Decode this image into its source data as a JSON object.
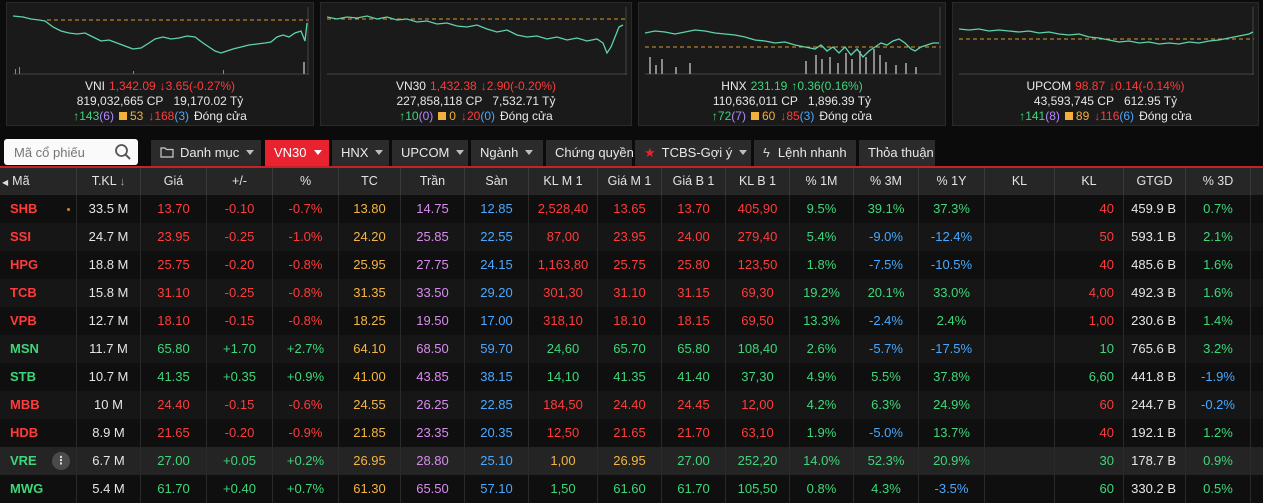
{
  "indices": [
    {
      "name": "VNI",
      "value": "1,342.09",
      "change": "3.65(-0.27%)",
      "dir": "down",
      "volume": "819,032,665 CP",
      "amount": "19,170.02 Tỷ",
      "adv": "143",
      "adv_ceil": "(6)",
      "unch": "53",
      "dec": "168",
      "dec_floor": "(3)",
      "status": "Đóng cửa"
    },
    {
      "name": "VN30",
      "value": "1,432.38",
      "change": "2.90(-0.20%)",
      "dir": "down",
      "volume": "227,858,118 CP",
      "amount": "7,532.71 Tỷ",
      "adv": "10",
      "adv_ceil": "(0)",
      "unch": "0",
      "dec": "20",
      "dec_floor": "(0)",
      "status": "Đóng cửa"
    },
    {
      "name": "HNX",
      "value": "231.19",
      "change": "0.36(0.16%)",
      "dir": "up",
      "volume": "110,636,011 CP",
      "amount": "1,896.39 Tỷ",
      "adv": "72",
      "adv_ceil": "(7)",
      "unch": "60",
      "dec": "85",
      "dec_floor": "(3)",
      "status": "Đóng cửa"
    },
    {
      "name": "UPCOM",
      "value": "98.87",
      "change": "0.14(-0.14%)",
      "dir": "down",
      "volume": "43,593,745 CP",
      "amount": "612.95 Tỷ",
      "adv": "141",
      "adv_ceil": "(8)",
      "unch": "89",
      "dec": "116",
      "dec_floor": "(6)",
      "status": "Đóng cửa"
    }
  ],
  "search": {
    "placeholder": "Mã cổ phiếu"
  },
  "tabs": [
    "Danh mục",
    "VN30",
    "HNX",
    "UPCOM",
    "Ngành",
    "Chứng quyền",
    "TCBS-Gợi ý",
    "Lệnh nhanh",
    "Thỏa thuận"
  ],
  "columns": [
    "Mã",
    "T.KL",
    "Giá",
    "+/-",
    "%",
    "TC",
    "Trần",
    "Sàn",
    "KL M 1",
    "Giá M 1",
    "Giá B 1",
    "KL B 1",
    "% 1M",
    "% 3M",
    "% 1Y",
    "KL",
    "KL",
    "GTGD",
    "% 3D"
  ],
  "rows": [
    {
      "sym": "SHB",
      "tkl": "33.5 M",
      "price": "13.70",
      "chg": "-0.10",
      "pct": "-0.7%",
      "ref": "13.80",
      "ceil": "14.75",
      "floor": "12.85",
      "klm1": "2,528,40",
      "giam1": "13.65",
      "giab1": "13.70",
      "klb1": "405,90",
      "p1m": "9.5%",
      "p3m": "39.1%",
      "p1y": "37.3%",
      "kl1": "",
      "kl2": "40",
      "gtgd": "459.9 B",
      "p3d": "0.7%",
      "c": "down",
      "c1m": "up",
      "c3m": "up",
      "c1y": "up",
      "c3d": "up",
      "cm1": "down",
      "cb1": "down",
      "ckl": "down"
    },
    {
      "sym": "SSI",
      "tkl": "24.7 M",
      "price": "23.95",
      "chg": "-0.25",
      "pct": "-1.0%",
      "ref": "24.20",
      "ceil": "25.85",
      "floor": "22.55",
      "klm1": "87,00",
      "giam1": "23.95",
      "giab1": "24.00",
      "klb1": "279,40",
      "p1m": "5.4%",
      "p3m": "-9.0%",
      "p1y": "-12.4%",
      "kl1": "",
      "kl2": "50",
      "gtgd": "593.1 B",
      "p3d": "2.1%",
      "c": "down",
      "c1m": "up",
      "c3m": "floor",
      "c1y": "floor",
      "c3d": "up",
      "cm1": "down",
      "cb1": "down",
      "ckl": "down"
    },
    {
      "sym": "HPG",
      "tkl": "18.8 M",
      "price": "25.75",
      "chg": "-0.20",
      "pct": "-0.8%",
      "ref": "25.95",
      "ceil": "27.75",
      "floor": "24.15",
      "klm1": "1,163,80",
      "giam1": "25.75",
      "giab1": "25.80",
      "klb1": "123,50",
      "p1m": "1.8%",
      "p3m": "-7.5%",
      "p1y": "-10.5%",
      "kl1": "",
      "kl2": "40",
      "gtgd": "485.6 B",
      "p3d": "1.6%",
      "c": "down",
      "c1m": "up",
      "c3m": "floor",
      "c1y": "floor",
      "c3d": "up",
      "cm1": "down",
      "cb1": "down",
      "ckl": "down"
    },
    {
      "sym": "TCB",
      "tkl": "15.8 M",
      "price": "31.10",
      "chg": "-0.25",
      "pct": "-0.8%",
      "ref": "31.35",
      "ceil": "33.50",
      "floor": "29.20",
      "klm1": "301,30",
      "giam1": "31.10",
      "giab1": "31.15",
      "klb1": "69,30",
      "p1m": "19.2%",
      "p3m": "20.1%",
      "p1y": "33.0%",
      "kl1": "",
      "kl2": "4,00",
      "gtgd": "492.3 B",
      "p3d": "1.6%",
      "c": "down",
      "c1m": "up",
      "c3m": "up",
      "c1y": "up",
      "c3d": "up",
      "cm1": "down",
      "cb1": "down",
      "ckl": "down"
    },
    {
      "sym": "VPB",
      "tkl": "12.7 M",
      "price": "18.10",
      "chg": "-0.15",
      "pct": "-0.8%",
      "ref": "18.25",
      "ceil": "19.50",
      "floor": "17.00",
      "klm1": "318,10",
      "giam1": "18.10",
      "giab1": "18.15",
      "klb1": "69,50",
      "p1m": "13.3%",
      "p3m": "-2.4%",
      "p1y": "2.4%",
      "kl1": "",
      "kl2": "1,00",
      "gtgd": "230.6 B",
      "p3d": "1.4%",
      "c": "down",
      "c1m": "up",
      "c3m": "floor",
      "c1y": "up",
      "c3d": "up",
      "cm1": "down",
      "cb1": "down",
      "ckl": "down"
    },
    {
      "sym": "MSN",
      "tkl": "11.7 M",
      "price": "65.80",
      "chg": "+1.70",
      "pct": "+2.7%",
      "ref": "64.10",
      "ceil": "68.50",
      "floor": "59.70",
      "klm1": "24,60",
      "giam1": "65.70",
      "giab1": "65.80",
      "klb1": "108,40",
      "p1m": "2.6%",
      "p3m": "-5.7%",
      "p1y": "-17.5%",
      "kl1": "",
      "kl2": "10",
      "gtgd": "765.6 B",
      "p3d": "3.2%",
      "c": "up",
      "c1m": "up",
      "c3m": "floor",
      "c1y": "floor",
      "c3d": "up",
      "cm1": "up",
      "cb1": "up",
      "ckl": "up"
    },
    {
      "sym": "STB",
      "tkl": "10.7 M",
      "price": "41.35",
      "chg": "+0.35",
      "pct": "+0.9%",
      "ref": "41.00",
      "ceil": "43.85",
      "floor": "38.15",
      "klm1": "14,10",
      "giam1": "41.35",
      "giab1": "41.40",
      "klb1": "37,30",
      "p1m": "4.9%",
      "p3m": "5.5%",
      "p1y": "37.8%",
      "kl1": "",
      "kl2": "6,60",
      "gtgd": "441.8 B",
      "p3d": "-1.9%",
      "c": "up",
      "c1m": "up",
      "c3m": "up",
      "c1y": "up",
      "c3d": "floor",
      "cm1": "up",
      "cb1": "up",
      "ckl": "up"
    },
    {
      "sym": "MBB",
      "tkl": "10 M",
      "price": "24.40",
      "chg": "-0.15",
      "pct": "-0.6%",
      "ref": "24.55",
      "ceil": "26.25",
      "floor": "22.85",
      "klm1": "184,50",
      "giam1": "24.40",
      "giab1": "24.45",
      "klb1": "12,00",
      "p1m": "4.2%",
      "p3m": "6.3%",
      "p1y": "24.9%",
      "kl1": "",
      "kl2": "60",
      "gtgd": "244.7 B",
      "p3d": "-0.2%",
      "c": "down",
      "c1m": "up",
      "c3m": "up",
      "c1y": "up",
      "c3d": "floor",
      "cm1": "down",
      "cb1": "down",
      "ckl": "down"
    },
    {
      "sym": "HDB",
      "tkl": "8.9 M",
      "price": "21.65",
      "chg": "-0.20",
      "pct": "-0.9%",
      "ref": "21.85",
      "ceil": "23.35",
      "floor": "20.35",
      "klm1": "12,50",
      "giam1": "21.65",
      "giab1": "21.70",
      "klb1": "63,10",
      "p1m": "1.9%",
      "p3m": "-5.0%",
      "p1y": "13.7%",
      "kl1": "",
      "kl2": "40",
      "gtgd": "192.1 B",
      "p3d": "1.2%",
      "c": "down",
      "c1m": "up",
      "c3m": "floor",
      "c1y": "up",
      "c3d": "up",
      "cm1": "down",
      "cb1": "down",
      "ckl": "down"
    },
    {
      "sym": "VRE",
      "tkl": "6.7 M",
      "price": "27.00",
      "chg": "+0.05",
      "pct": "+0.2%",
      "ref": "26.95",
      "ceil": "28.80",
      "floor": "25.10",
      "klm1": "1,00",
      "giam1": "26.95",
      "giab1": "27.00",
      "klb1": "252,20",
      "p1m": "14.0%",
      "p3m": "52.3%",
      "p1y": "20.9%",
      "kl1": "",
      "kl2": "30",
      "gtgd": "178.7 B",
      "p3d": "0.9%",
      "c": "up",
      "c1m": "up",
      "c3m": "up",
      "c1y": "up",
      "c3d": "up",
      "cm1": "amb",
      "cb1": "up",
      "ckl": "up"
    },
    {
      "sym": "MWG",
      "tkl": "5.4 M",
      "price": "61.70",
      "chg": "+0.40",
      "pct": "+0.7%",
      "ref": "61.30",
      "ceil": "65.50",
      "floor": "57.10",
      "klm1": "1,50",
      "giam1": "61.60",
      "giab1": "61.70",
      "klb1": "105,50",
      "p1m": "0.8%",
      "p3m": "4.3%",
      "p1y": "-3.5%",
      "kl1": "",
      "kl2": "60",
      "gtgd": "330.2 B",
      "p3d": "0.5%",
      "c": "up",
      "c1m": "up",
      "c3m": "up",
      "c1y": "floor",
      "c3d": "up",
      "cm1": "up",
      "cb1": "up",
      "ckl": "up"
    }
  ],
  "colors": {
    "up": "#3fd67a",
    "down": "#ff3b3b",
    "ref": "#f5b540",
    "ceiling": "#d98cf0",
    "floor": "#49a8ff",
    "accent": "#e8232f"
  }
}
